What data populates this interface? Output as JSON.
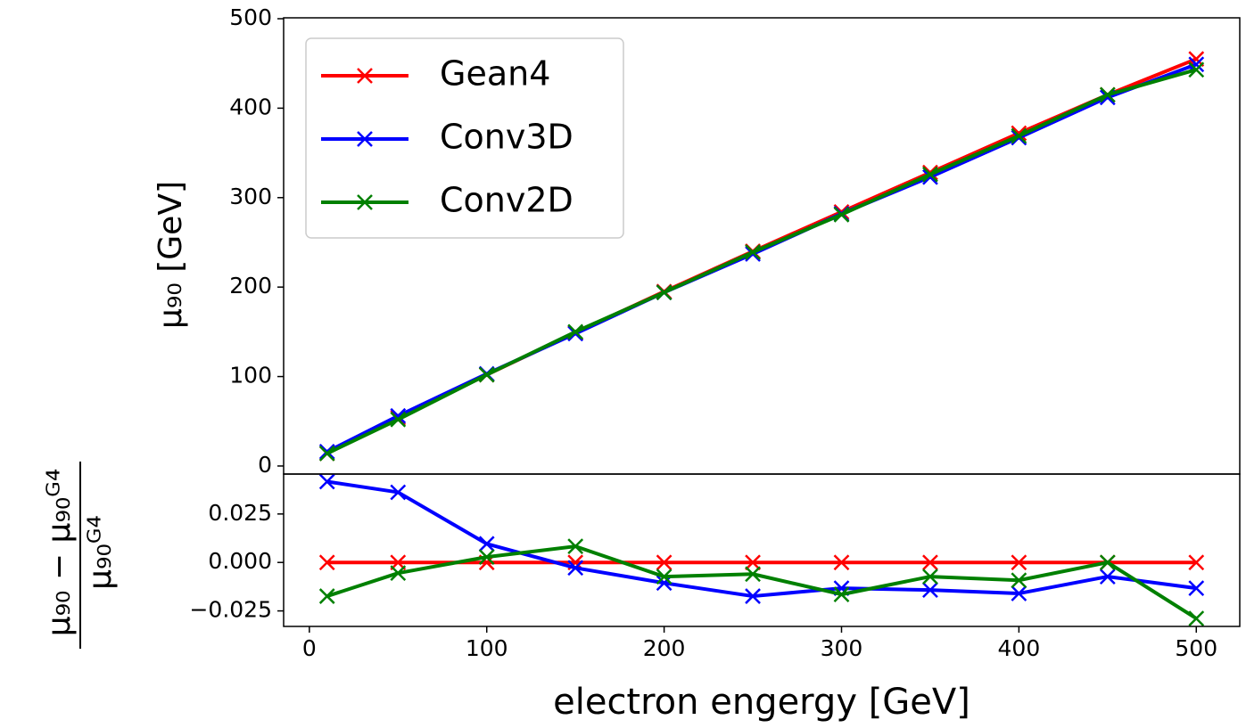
{
  "chart_data": [
    {
      "type": "line",
      "ylabel": "μ₉₀ [GeV]",
      "x": [
        10,
        50,
        100,
        150,
        200,
        250,
        300,
        350,
        400,
        450,
        500
      ],
      "series": [
        {
          "name": "Gean4",
          "color": "#ff0000",
          "values": [
            14,
            54,
            102,
            149,
            195,
            240,
            284,
            328,
            372,
            415,
            455
          ]
        },
        {
          "name": "Conv3D",
          "color": "#0000ff",
          "values": [
            16,
            56,
            103,
            148,
            194,
            237,
            282,
            323,
            367,
            412,
            449
          ]
        },
        {
          "name": "Conv2D",
          "color": "#008000",
          "values": [
            14,
            52,
            102,
            150,
            194,
            239,
            281,
            326,
            369,
            415,
            443
          ]
        }
      ],
      "xlim": [
        -14.5,
        524.5
      ],
      "ylim": [
        -9,
        501
      ],
      "yticks": [
        0,
        100,
        200,
        300,
        400,
        500
      ],
      "legend": "upper left"
    },
    {
      "type": "line",
      "xlabel": "electron engergy [GeV]",
      "ylabel": {
        "numerator": "μ₉₀ − μ₉₀ᴳ⁴",
        "denominator": "μ₉₀ᴳ⁴"
      },
      "x": [
        10,
        50,
        100,
        150,
        200,
        250,
        300,
        350,
        400,
        450,
        500
      ],
      "series": [
        {
          "color": "#ff0000",
          "values": [
            0,
            0,
            0,
            0,
            0,
            0,
            0,
            0,
            0,
            0,
            0
          ]
        },
        {
          "color": "#0000ff",
          "values": [
            0.0417,
            0.0362,
            0.0096,
            -0.0028,
            -0.0106,
            -0.0174,
            -0.0133,
            -0.0142,
            -0.016,
            -0.0073,
            -0.0133
          ]
        },
        {
          "color": "#008000",
          "values": [
            -0.0174,
            -0.0055,
            0.0028,
            0.0083,
            -0.0073,
            -0.006,
            -0.0165,
            -0.0073,
            -0.0092,
            0,
            -0.0289
          ]
        }
      ],
      "xlim": [
        -14.5,
        524.5
      ],
      "ylim": [
        -0.033,
        0.0456
      ],
      "xticks": [
        0,
        100,
        200,
        300,
        400,
        500
      ],
      "yticks": [
        0.025,
        {
          "value": 0,
          "label": "0.000"
        },
        {
          "value": -0.025,
          "label": "−0.025"
        }
      ]
    }
  ]
}
